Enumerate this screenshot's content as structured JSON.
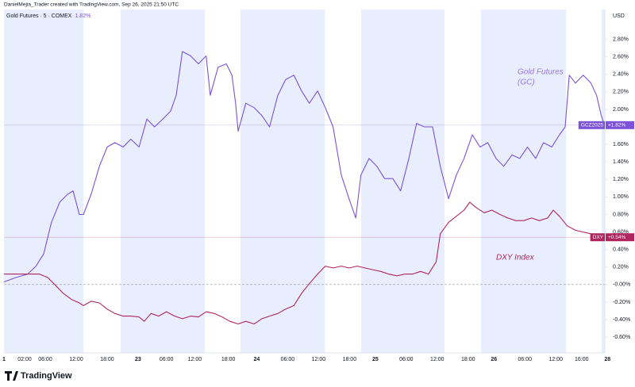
{
  "header": "DanielMejia_Trader created with TradingView.com, Sep 26, 2025 21:50 UTC",
  "footer": "TradingView",
  "chart_data": {
    "type": "line",
    "legend_text": "Gold Futures · 5 · COMEX",
    "legend_change": "1.82%",
    "y_axis_label": "USD",
    "xlim": [
      0,
      116.5
    ],
    "ylim": [
      -0.78,
      3.14
    ],
    "xticks": [
      {
        "value": 0,
        "label": "1"
      },
      {
        "value": 4,
        "label": "02:00"
      },
      {
        "value": 8,
        "label": "06:00"
      },
      {
        "value": 14,
        "label": "12:00"
      },
      {
        "value": 20,
        "label": "18:00"
      },
      {
        "value": 26,
        "label": "23"
      },
      {
        "value": 31.5,
        "label": "06:00"
      },
      {
        "value": 37,
        "label": "12:00"
      },
      {
        "value": 43.5,
        "label": "18:00"
      },
      {
        "value": 49,
        "label": "24"
      },
      {
        "value": 55,
        "label": "06:00"
      },
      {
        "value": 61,
        "label": "12:00"
      },
      {
        "value": 67,
        "label": "18:00"
      },
      {
        "value": 72,
        "label": "25"
      },
      {
        "value": 78,
        "label": "06:00"
      },
      {
        "value": 84,
        "label": "12:00"
      },
      {
        "value": 90,
        "label": "18:00"
      },
      {
        "value": 95,
        "label": "26"
      },
      {
        "value": 101,
        "label": "06:00"
      },
      {
        "value": 107,
        "label": "12:00"
      },
      {
        "value": 112,
        "label": "16:00"
      },
      {
        "value": 117,
        "label": "28"
      }
    ],
    "yticks": [
      {
        "value": 2.8,
        "label": "2.80%"
      },
      {
        "value": 2.6,
        "label": "2.60%"
      },
      {
        "value": 2.4,
        "label": "2.40%"
      },
      {
        "value": 2.2,
        "label": "2.20%"
      },
      {
        "value": 2.0,
        "label": "2.00%"
      },
      {
        "value": 1.8,
        "label": "1.80%"
      },
      {
        "value": 1.6,
        "label": "1.60%"
      },
      {
        "value": 1.4,
        "label": "1.40%"
      },
      {
        "value": 1.2,
        "label": "1.20%"
      },
      {
        "value": 1.0,
        "label": "1.00%"
      },
      {
        "value": 0.8,
        "label": "0.80%"
      },
      {
        "value": 0.6,
        "label": "0.60%"
      },
      {
        "value": 0.4,
        "label": "0.40%"
      },
      {
        "value": 0.2,
        "label": "0.20%"
      },
      {
        "value": 0,
        "label": "-0.00%"
      },
      {
        "value": -0.2,
        "label": "-0.20%"
      },
      {
        "value": -0.4,
        "label": "-0.40%"
      },
      {
        "value": -0.6,
        "label": "-0.60%"
      }
    ],
    "series": [
      {
        "name": "Gold Futures",
        "name2": "(GC)",
        "symbol": "GCZ2025",
        "last_label": "+1.82%",
        "color": "#7b52d9",
        "x": [
          0,
          2.3,
          4.6,
          6.2,
          7.7,
          9.2,
          10.8,
          12.3,
          13.4,
          14.6,
          15.4,
          16.9,
          18.5,
          20,
          21.5,
          23.1,
          24.6,
          26.2,
          27.7,
          29.2,
          30.8,
          32.3,
          33.4,
          34.6,
          36.2,
          37.7,
          39.2,
          40,
          41.5,
          43.1,
          44.2,
          44.9,
          45.4,
          46.9,
          48.5,
          50,
          51.5,
          53.1,
          54.6,
          56.2,
          57.7,
          59.2,
          60.8,
          62.3,
          63.8,
          65.4,
          66.9,
          68.2,
          69.2,
          70.8,
          72.3,
          73.8,
          75.4,
          76.9,
          78.5,
          80,
          81.5,
          83.1,
          84.6,
          86.2,
          87.7,
          89.2,
          90.8,
          92.3,
          93.8,
          95.4,
          96.9,
          98.5,
          100,
          101.5,
          103.1,
          104.6,
          106.2,
          107.7,
          108.8,
          109.6,
          110.8,
          112.3,
          113.8,
          114.9,
          115.8,
          116.4
        ],
        "values": [
          0.03,
          0.08,
          0.12,
          0.21,
          0.35,
          0.71,
          0.94,
          1.03,
          1.07,
          0.8,
          0.8,
          1.03,
          1.35,
          1.57,
          1.62,
          1.57,
          1.66,
          1.57,
          1.89,
          1.8,
          1.89,
          1.98,
          2.16,
          2.66,
          2.61,
          2.52,
          2.61,
          2.16,
          2.48,
          2.52,
          2.39,
          2.07,
          1.75,
          2.07,
          2.02,
          1.93,
          1.8,
          2.16,
          2.34,
          2.39,
          2.21,
          2.07,
          2.21,
          2.02,
          1.8,
          1.25,
          0.98,
          0.76,
          1.25,
          1.44,
          1.35,
          1.21,
          1.21,
          1.07,
          1.44,
          1.84,
          1.8,
          1.8,
          1.35,
          0.98,
          1.25,
          1.44,
          1.71,
          1.57,
          1.62,
          1.44,
          1.35,
          1.48,
          1.44,
          1.57,
          1.44,
          1.62,
          1.57,
          1.71,
          1.8,
          2.39,
          2.3,
          2.39,
          2.3,
          2.16,
          1.93,
          1.82
        ]
      },
      {
        "name": "DXY Index",
        "symbol": "DXY",
        "last_label": "+0.54%",
        "color": "#b0245f",
        "x": [
          0,
          2.3,
          4.6,
          6.9,
          8.5,
          10,
          11.5,
          13.1,
          14.6,
          15.4,
          16.9,
          18.5,
          20,
          21.5,
          23.1,
          24.6,
          26.2,
          27.2,
          28.5,
          30,
          31.5,
          33.1,
          34.6,
          36.2,
          37.7,
          39.2,
          40.8,
          42.3,
          43.8,
          45.4,
          46.9,
          48.5,
          50,
          51.5,
          53.1,
          54.6,
          56.2,
          57.7,
          59.2,
          60.8,
          62.3,
          63.8,
          65.4,
          66.9,
          68.5,
          70,
          71.5,
          73.1,
          74.6,
          76.2,
          77.7,
          79.2,
          80.8,
          82.3,
          83.8,
          84.6,
          86.2,
          87.7,
          89.2,
          90.3,
          91.5,
          93.1,
          94.6,
          96.2,
          97.7,
          99.2,
          100.8,
          102.3,
          103.8,
          105.4,
          106.5,
          107.7,
          109.2,
          110.8,
          112.3,
          113.8,
          115.4,
          116.5
        ],
        "values": [
          0.12,
          0.12,
          0.12,
          0.12,
          0.08,
          -0.01,
          -0.1,
          -0.17,
          -0.21,
          -0.24,
          -0.19,
          -0.21,
          -0.28,
          -0.33,
          -0.36,
          -0.36,
          -0.37,
          -0.42,
          -0.33,
          -0.36,
          -0.31,
          -0.36,
          -0.39,
          -0.36,
          -0.37,
          -0.31,
          -0.33,
          -0.37,
          -0.42,
          -0.45,
          -0.42,
          -0.45,
          -0.39,
          -0.36,
          -0.33,
          -0.28,
          -0.24,
          -0.1,
          0.01,
          0.12,
          0.21,
          0.19,
          0.21,
          0.19,
          0.21,
          0.19,
          0.17,
          0.15,
          0.12,
          0.1,
          0.12,
          0.12,
          0.15,
          0.12,
          0.26,
          0.58,
          0.71,
          0.78,
          0.85,
          0.94,
          0.88,
          0.82,
          0.85,
          0.8,
          0.76,
          0.73,
          0.73,
          0.76,
          0.73,
          0.76,
          0.85,
          0.78,
          0.67,
          0.62,
          0.6,
          0.58,
          0.53,
          0.54
        ]
      }
    ]
  }
}
